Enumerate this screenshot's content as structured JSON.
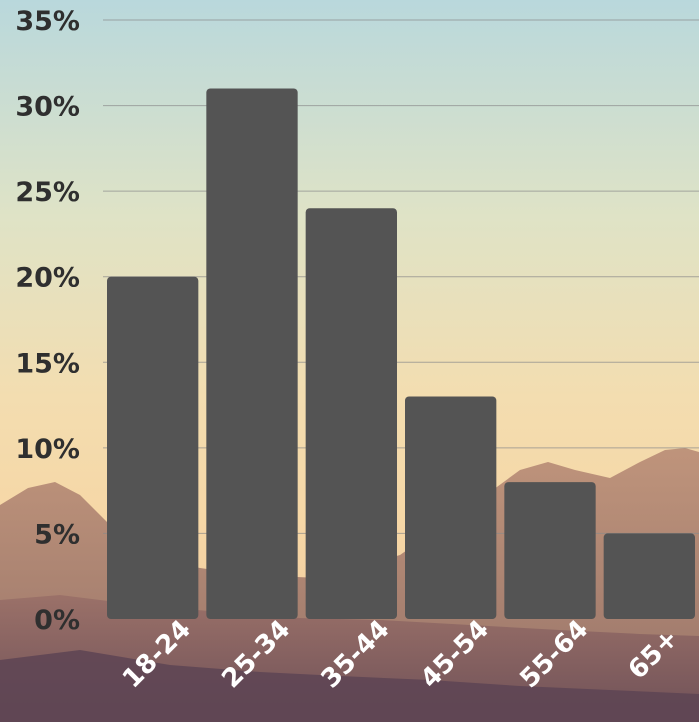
{
  "chart_data": {
    "type": "bar",
    "categories": [
      "18-24",
      "25-34",
      "35-44",
      "45-54",
      "55-64",
      "65+"
    ],
    "values": [
      20,
      31,
      24,
      13,
      8,
      5
    ],
    "ylim": [
      0,
      35
    ],
    "y_ticks": [
      "0%",
      "5%",
      "10%",
      "15%",
      "20%",
      "25%",
      "30%",
      "35%"
    ],
    "grid": true,
    "bar_color": "#545454"
  }
}
